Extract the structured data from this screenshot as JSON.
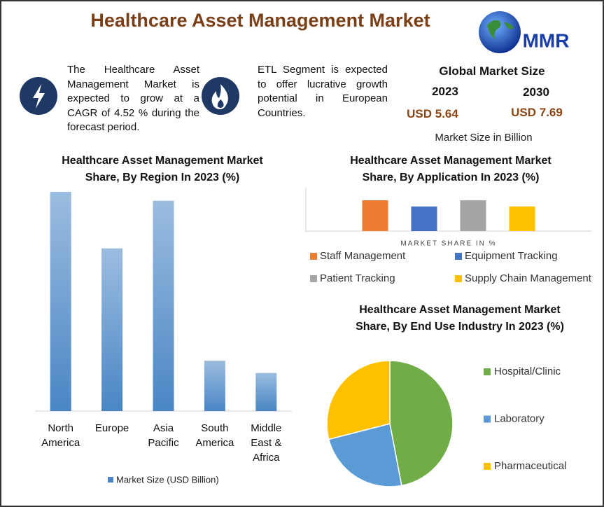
{
  "header": {
    "title": "Healthcare Asset Management Market",
    "logo": "MMR"
  },
  "info": {
    "growth": "The Healthcare Asset Management Market is expected to grow at a CAGR of 4.52 % during the forecast period.",
    "segment": "ETL Segment is expected to offer lucrative growth potential in European Countries."
  },
  "market_size": {
    "title": "Global Market Size",
    "years": [
      "2023",
      "2030"
    ],
    "values": [
      "USD 5.64",
      "USD 7.69"
    ],
    "note": "Market Size in Billion"
  },
  "chart_data": [
    {
      "type": "bar",
      "title": "Healthcare Asset Management Market Share, By Region In 2023 (%)",
      "categories": [
        "North America",
        "Europe",
        "Asia Pacific",
        "South America",
        "Middle East & Africa"
      ],
      "series": [
        {
          "name": "Market Size (USD Billion)",
          "color": "#4a86c5",
          "values": [
            32.2,
            23.9,
            30.9,
            7.4,
            5.6
          ]
        }
      ]
    },
    {
      "type": "bar",
      "title": "Healthcare Asset Management Market Share, By Application In 2023 (%)",
      "x_label": "MARKET SHARE IN %",
      "categories": [
        "Staff Management",
        "Equipment Tracking",
        "Patient Tracking",
        "Supply Chain Management"
      ],
      "values": [
        27.8,
        22.2,
        27.8,
        22.2
      ],
      "colors": [
        "#ed7d31",
        "#4472c4",
        "#a5a5a5",
        "#ffc000"
      ]
    },
    {
      "type": "pie",
      "title": "Healthcare Asset Management Market Share, By End Use Industry In 2023 (%)",
      "categories": [
        "Hospital/Clinic",
        "Laboratory",
        "Pharmaceutical"
      ],
      "values": [
        47,
        24,
        29
      ],
      "colors": [
        "#70ad47",
        "#5b9bd5",
        "#ffc000"
      ]
    }
  ]
}
